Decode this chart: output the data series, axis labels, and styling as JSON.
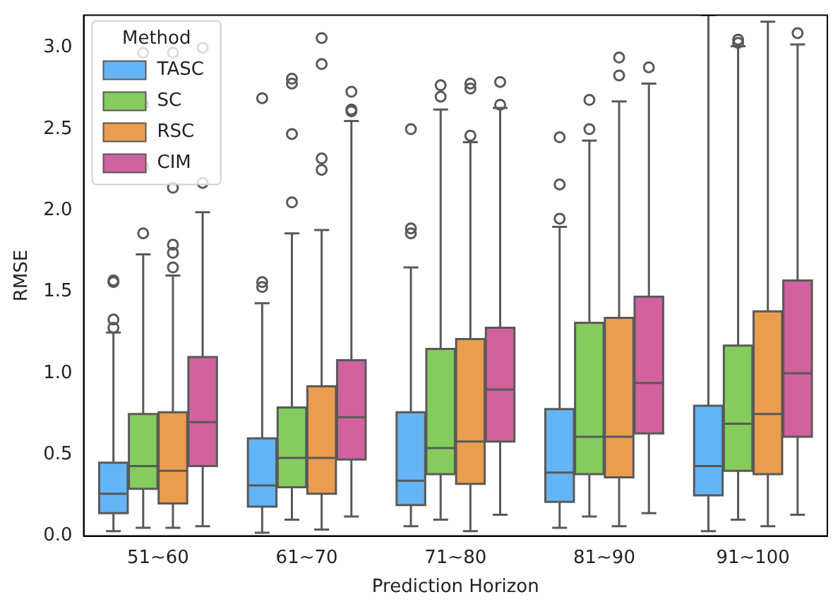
{
  "chart_data": {
    "type": "box",
    "xlabel": "Prediction Horizon",
    "ylabel": "RMSE",
    "legend_title": "Method",
    "legend": "top left",
    "grid": false,
    "categories": [
      "51~60",
      "61~70",
      "71~80",
      "81~90",
      "91~100"
    ],
    "ylim": [
      0,
      3.2
    ],
    "yticks": [
      {
        "value": 0,
        "label": "0.0"
      },
      {
        "value": 0.5,
        "label": "0.5"
      },
      {
        "value": 1,
        "label": "1.0"
      },
      {
        "value": 1.5,
        "label": "1.5"
      },
      {
        "value": 2,
        "label": "2.0"
      },
      {
        "value": 2.5,
        "label": "2.5"
      },
      {
        "value": 3,
        "label": "3.0"
      }
    ],
    "series": [
      {
        "name": "TASC",
        "color": "#64b5f6",
        "boxes": [
          {
            "low": 0.03,
            "q1": 0.14,
            "median": 0.26,
            "q3": 0.45,
            "high": 1.25,
            "outliers": [
              1.28,
              1.33,
              1.56,
              1.57
            ]
          },
          {
            "low": 0.02,
            "q1": 0.18,
            "median": 0.31,
            "q3": 0.6,
            "high": 1.43,
            "outliers": [
              1.53,
              1.56,
              2.69
            ]
          },
          {
            "low": 0.06,
            "q1": 0.19,
            "median": 0.34,
            "q3": 0.76,
            "high": 1.65,
            "outliers": [
              1.86,
              1.89,
              2.5
            ]
          },
          {
            "low": 0.05,
            "q1": 0.21,
            "median": 0.39,
            "q3": 0.78,
            "high": 1.9,
            "outliers": [
              1.95,
              2.16,
              2.45
            ]
          },
          {
            "low": 0.03,
            "q1": 0.25,
            "median": 0.43,
            "q3": 0.8,
            "high": 3.2
          }
        ]
      },
      {
        "name": "SC",
        "color": "#84cc5e",
        "boxes": [
          {
            "low": 0.05,
            "q1": 0.29,
            "median": 0.43,
            "q3": 0.75,
            "high": 1.73,
            "outliers": [
              1.86,
              2.27,
              2.65,
              2.97
            ]
          },
          {
            "low": 0.1,
            "q1": 0.3,
            "median": 0.48,
            "q3": 0.79,
            "high": 1.86,
            "outliers": [
              2.05,
              2.47,
              2.78,
              2.81
            ]
          },
          {
            "low": 0.1,
            "q1": 0.38,
            "median": 0.54,
            "q3": 1.15,
            "high": 2.62,
            "outliers": [
              2.7,
              2.77
            ]
          },
          {
            "low": 0.12,
            "q1": 0.38,
            "median": 0.61,
            "q3": 1.31,
            "high": 2.43,
            "outliers": [
              2.5,
              2.68
            ]
          },
          {
            "low": 0.1,
            "q1": 0.4,
            "median": 0.69,
            "q3": 1.17,
            "high": 3.01,
            "outliers": [
              3.03,
              3.05
            ]
          }
        ]
      },
      {
        "name": "RSC",
        "color": "#eb9d4f",
        "boxes": [
          {
            "low": 0.05,
            "q1": 0.2,
            "median": 0.4,
            "q3": 0.76,
            "high": 1.6,
            "outliers": [
              1.65,
              1.74,
              1.79,
              2.14,
              2.97
            ]
          },
          {
            "low": 0.04,
            "q1": 0.26,
            "median": 0.48,
            "q3": 0.92,
            "high": 1.88,
            "outliers": [
              2.25,
              2.32,
              2.9,
              3.06
            ]
          },
          {
            "low": 0.03,
            "q1": 0.32,
            "median": 0.58,
            "q3": 1.21,
            "high": 2.42,
            "outliers": [
              2.46,
              2.75,
              2.78
            ]
          },
          {
            "low": 0.06,
            "q1": 0.36,
            "median": 0.61,
            "q3": 1.34,
            "high": 2.67,
            "outliers": [
              2.83,
              2.94
            ]
          },
          {
            "low": 0.06,
            "q1": 0.38,
            "median": 0.75,
            "q3": 1.38,
            "high": 3.16
          }
        ]
      },
      {
        "name": "CIM",
        "color": "#d1629e",
        "boxes": [
          {
            "low": 0.06,
            "q1": 0.43,
            "median": 0.7,
            "q3": 1.1,
            "high": 1.99,
            "outliers": [
              2.17,
              3.0
            ]
          },
          {
            "low": 0.12,
            "q1": 0.47,
            "median": 0.73,
            "q3": 1.08,
            "high": 2.55,
            "outliers": [
              2.61,
              2.62,
              2.73
            ]
          },
          {
            "low": 0.13,
            "q1": 0.58,
            "median": 0.9,
            "q3": 1.28,
            "high": 2.63,
            "outliers": [
              2.65,
              2.79
            ]
          },
          {
            "low": 0.14,
            "q1": 0.63,
            "median": 0.94,
            "q3": 1.47,
            "high": 2.78,
            "outliers": [
              2.88
            ]
          },
          {
            "low": 0.13,
            "q1": 0.61,
            "median": 1.0,
            "q3": 1.57,
            "high": 3.02,
            "outliers": [
              3.09
            ]
          }
        ]
      }
    ]
  }
}
